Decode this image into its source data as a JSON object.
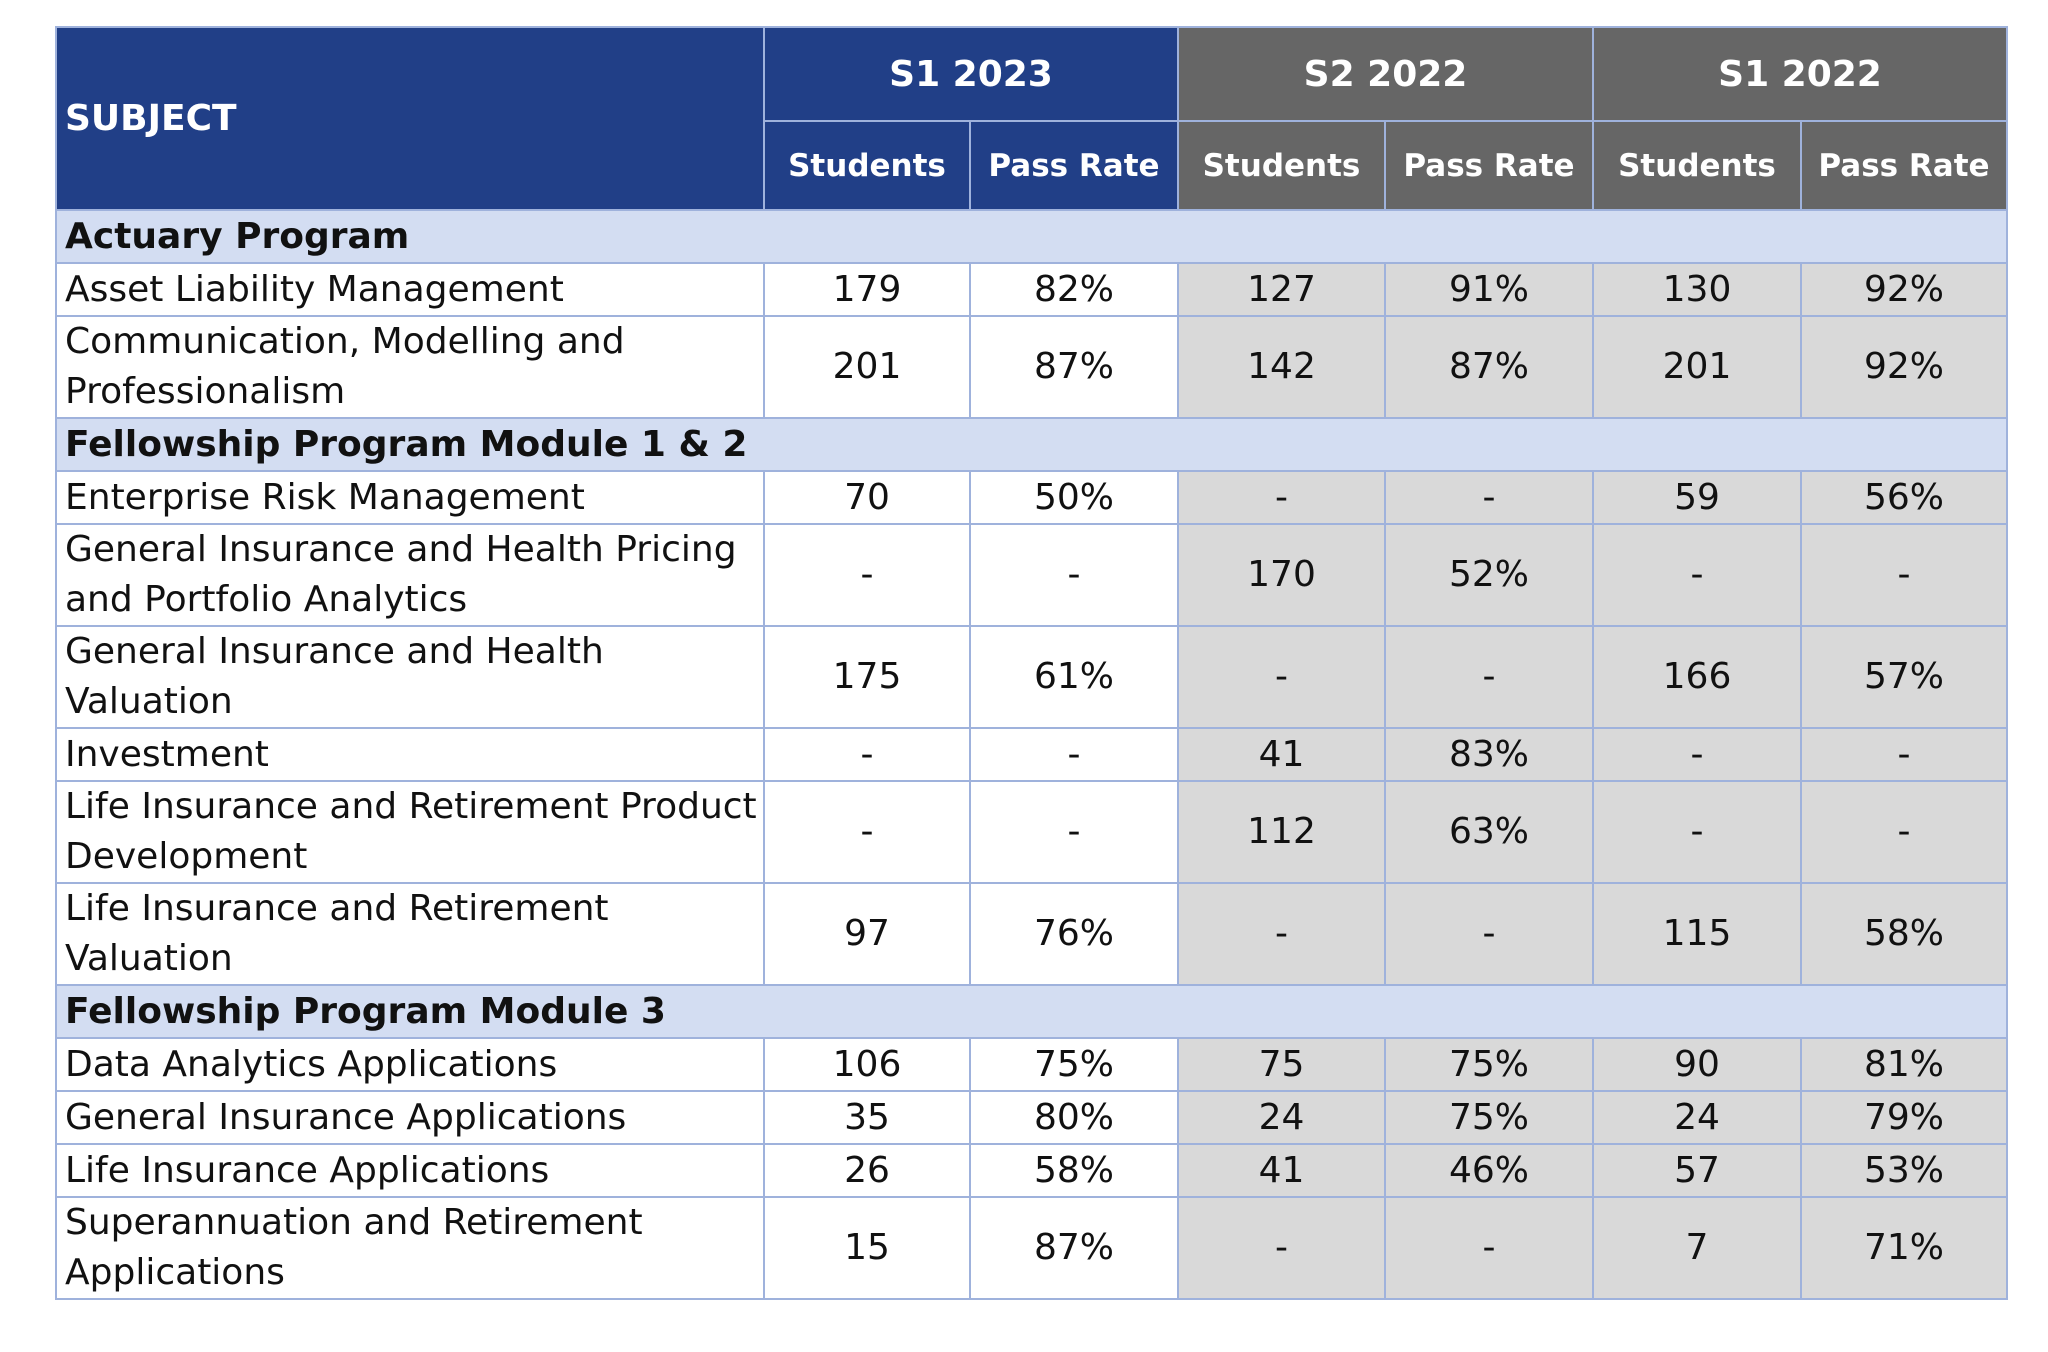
{
  "table": {
    "header": {
      "subject": "SUBJECT",
      "periods": [
        {
          "label": "S1 2023",
          "columns": [
            "Students",
            "Pass Rate"
          ]
        },
        {
          "label": "S2 2022",
          "columns": [
            "Students",
            "Pass Rate"
          ]
        },
        {
          "label": "S1 2022",
          "columns": [
            "Students",
            "Pass Rate"
          ]
        }
      ]
    },
    "sections": [
      {
        "title": "Actuary Program",
        "rows": [
          {
            "subject": "Asset Liability Management",
            "cells": [
              "179",
              "82%",
              "127",
              "91%",
              "130",
              "92%"
            ]
          },
          {
            "subject": "Communication, Modelling and Professionalism",
            "cells": [
              "201",
              "87%",
              "142",
              "87%",
              "201",
              "92%"
            ]
          }
        ]
      },
      {
        "title": "Fellowship Program Module 1 & 2",
        "rows": [
          {
            "subject": "Enterprise Risk Management",
            "cells": [
              "70",
              "50%",
              "-",
              "-",
              "59",
              "56%"
            ]
          },
          {
            "subject": "General Insurance and Health Pricing and Portfolio Analytics",
            "cells": [
              "-",
              "-",
              "170",
              "52%",
              "-",
              "-"
            ]
          },
          {
            "subject": "General Insurance and Health Valuation",
            "cells": [
              "175",
              "61%",
              "-",
              "-",
              "166",
              "57%"
            ]
          },
          {
            "subject": "Investment",
            "cells": [
              "-",
              "-",
              "41",
              "83%",
              "-",
              "-"
            ]
          },
          {
            "subject": "Life Insurance and Retirement Product Development",
            "cells": [
              "-",
              "-",
              "112",
              "63%",
              "-",
              "-"
            ]
          },
          {
            "subject": "Life Insurance and Retirement Valuation",
            "cells": [
              "97",
              "76%",
              "-",
              "-",
              "115",
              "58%"
            ]
          }
        ]
      },
      {
        "title": "Fellowship Program Module 3",
        "rows": [
          {
            "subject": "Data Analytics Applications",
            "cells": [
              "106",
              "75%",
              "75",
              "75%",
              "90",
              "81%"
            ]
          },
          {
            "subject": "General Insurance Applications",
            "cells": [
              "35",
              "80%",
              "24",
              "75%",
              "24",
              "79%"
            ]
          },
          {
            "subject": "Life Insurance Applications",
            "cells": [
              "26",
              "58%",
              "41",
              "46%",
              "57",
              "53%"
            ]
          },
          {
            "subject": "Superannuation and Retirement Applications",
            "cells": [
              "15",
              "87%",
              "-",
              "-",
              "7",
              "71%"
            ]
          }
        ]
      }
    ]
  }
}
